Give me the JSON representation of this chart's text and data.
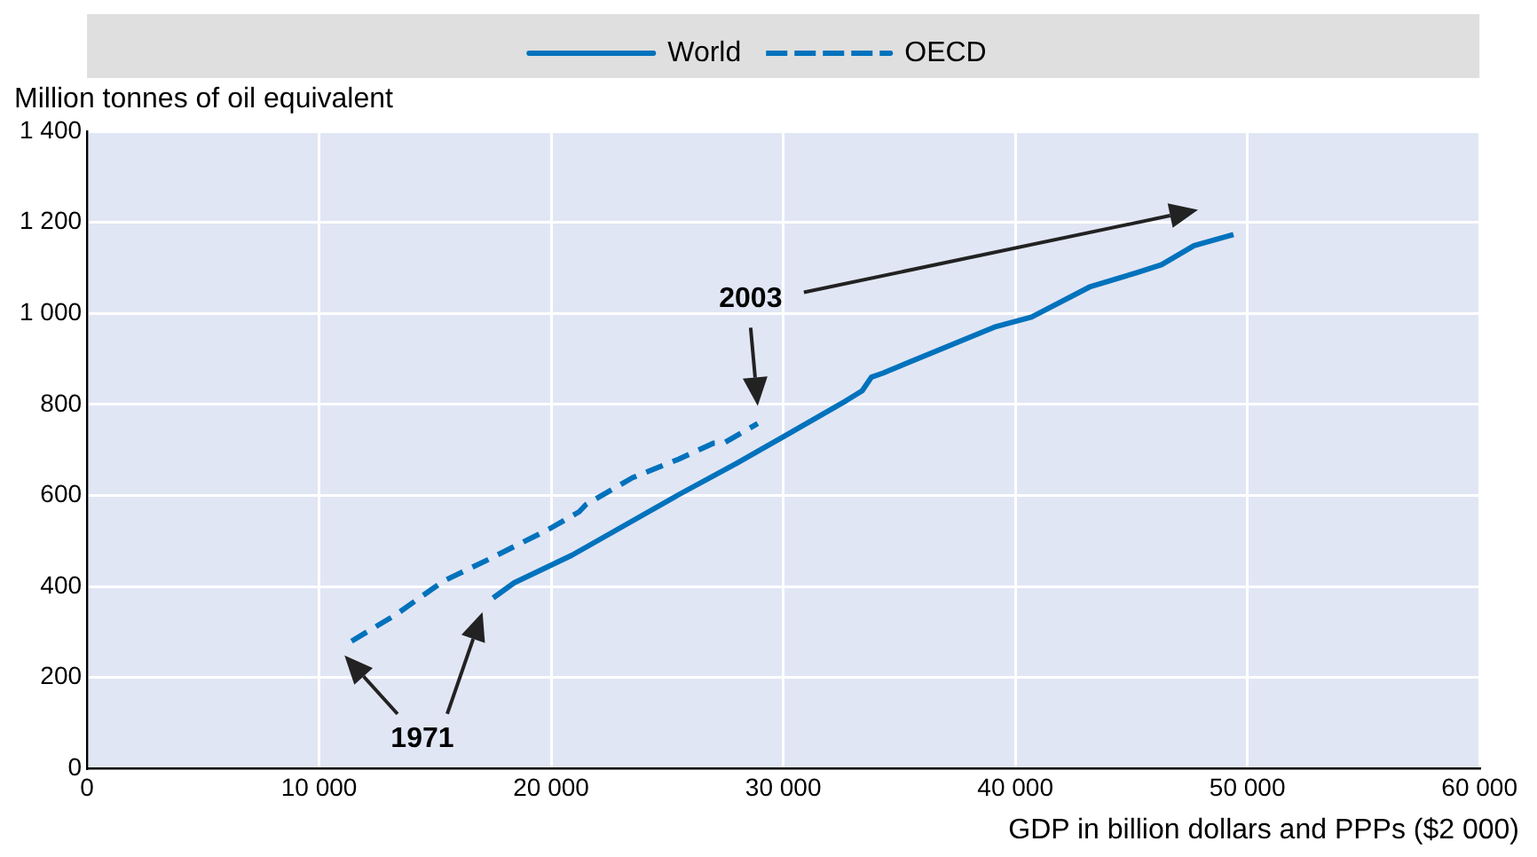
{
  "chart_data": {
    "type": "line",
    "xlabel": "GDP in billion dollars and PPPs ($2 000)",
    "ylabel": "Million tonnes of oil equivalent",
    "xlim": [
      0,
      60000
    ],
    "ylim": [
      0,
      1400
    ],
    "xticks": [
      0,
      {
        "value": 10000,
        "label": "10 000"
      },
      {
        "value": 20000,
        "label": "20 000"
      },
      {
        "value": 30000,
        "label": "30 000"
      },
      {
        "value": 40000,
        "label": "40 000"
      },
      {
        "value": 50000,
        "label": "50 000"
      },
      {
        "value": 60000,
        "label": "60 000"
      }
    ],
    "yticks": [
      0,
      200,
      400,
      600,
      800,
      {
        "value": 1000,
        "label": "1 000"
      },
      {
        "value": 1200,
        "label": "1 200"
      },
      {
        "value": 1400,
        "label": "1 400"
      }
    ],
    "grid": true,
    "legend": "top",
    "marker": "none",
    "series": [
      {
        "name": "World",
        "color": "#0072bc",
        "line_style": "solid",
        "x": [
          17500,
          18400,
          20900,
          25500,
          28000,
          30000,
          32700,
          33400,
          33800,
          34300,
          39100,
          40700,
          43200,
          45200,
          46300,
          47700,
          49400
        ],
        "values": [
          375,
          408,
          469,
          602,
          671,
          729,
          808,
          830,
          860,
          869,
          970,
          992,
          1058,
          1089,
          1107,
          1149,
          1173
        ]
      },
      {
        "name": "OECD",
        "color": "#0072bc",
        "line_style": "dashed",
        "x": [
          11400,
          13300,
          14800,
          15400,
          17200,
          19900,
          21200,
          21500,
          23500,
          25500,
          27000,
          27500,
          28900
        ],
        "values": [
          280,
          338,
          392,
          413,
          457,
          526,
          564,
          580,
          639,
          680,
          715,
          717,
          758
        ]
      }
    ],
    "annotations": [
      "1971",
      "2003"
    ]
  }
}
